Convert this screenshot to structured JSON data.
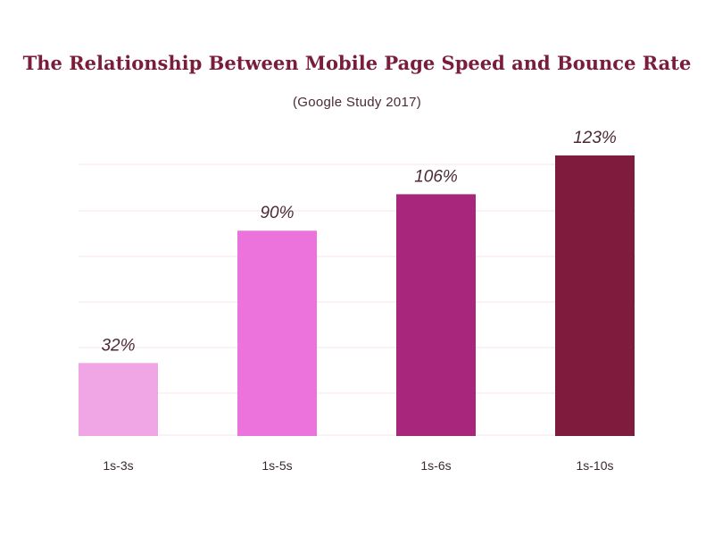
{
  "chart_data": {
    "type": "bar",
    "title": "The Relationship Between Mobile Page Speed and Bounce Rate",
    "subtitle": "(Google Study 2017)",
    "categories": [
      "1s-3s",
      "1s-5s",
      "1s-6s",
      "1s-10s"
    ],
    "values": [
      32,
      90,
      106,
      123
    ],
    "value_labels": [
      "32%",
      "90%",
      "106%",
      "123%"
    ],
    "bar_colors": [
      "#f0a6e4",
      "#ec73dc",
      "#a8267c",
      "#7f1b3c"
    ],
    "ylim": [
      0,
      123
    ],
    "grid": true,
    "xlabel": "",
    "ylabel": ""
  },
  "colors": {
    "title": "#7a1d3b",
    "gridline": "#f6e4ec"
  }
}
